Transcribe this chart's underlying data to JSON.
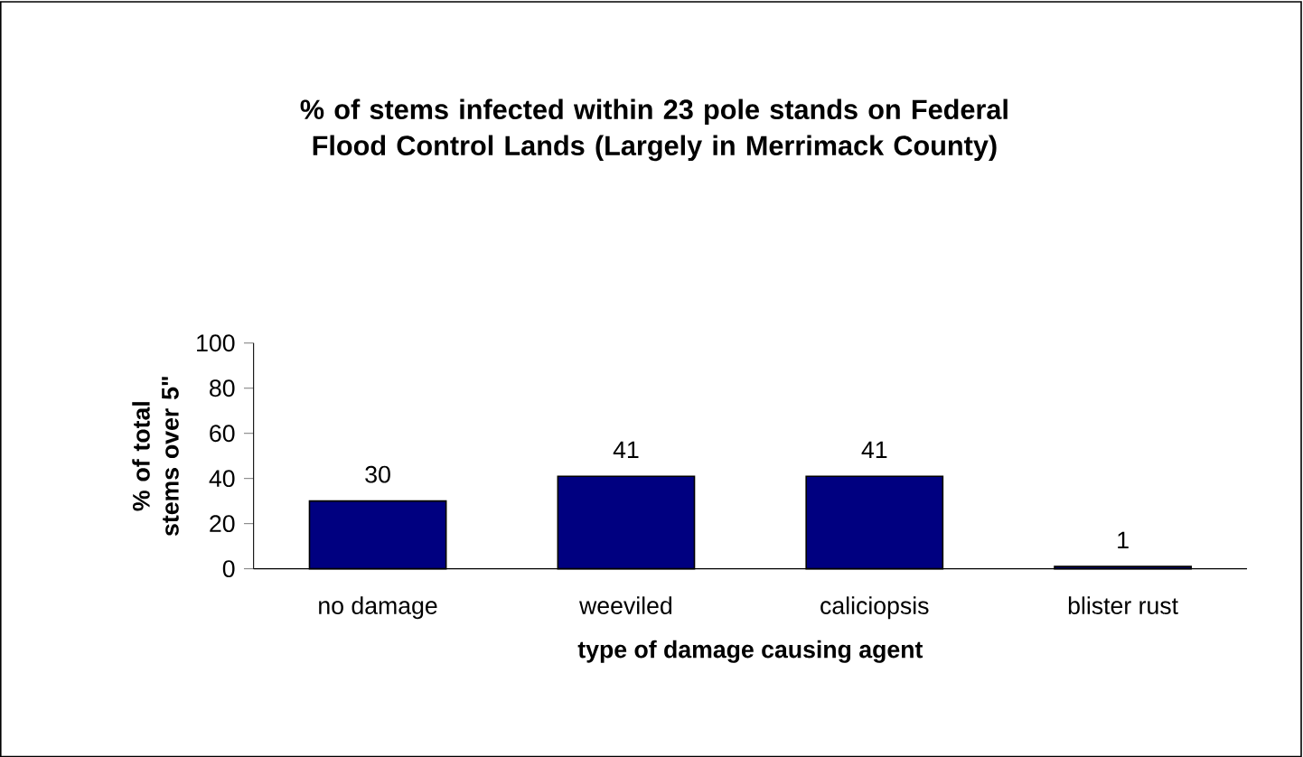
{
  "chart_data": {
    "type": "bar",
    "title": "% of stems infected within 23 pole stands on Federal Flood Control Lands (Largely in Merrimack County)",
    "ylabel": "% of total stems over 5\"",
    "xlabel": "type of damage causing agent",
    "categories": [
      "no damage",
      "weeviled",
      "caliciopsis",
      "blister rust"
    ],
    "values": [
      30,
      41,
      41,
      1
    ],
    "color": "#000080",
    "ylim": [
      0,
      100
    ],
    "yticks": [
      0,
      20,
      40,
      60,
      80,
      100
    ],
    "data_labels": true
  }
}
